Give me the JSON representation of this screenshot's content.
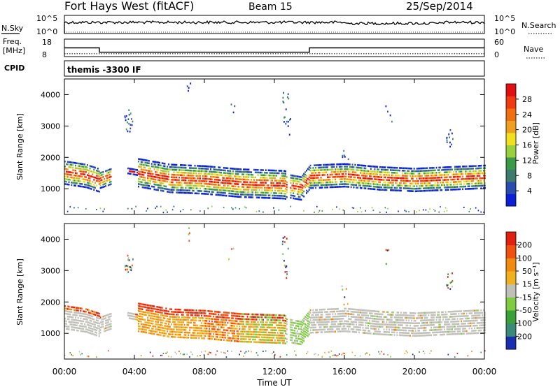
{
  "header": {
    "title": "Fort Hays West (fitACF)",
    "beam": "Beam 15",
    "date": "25/Sep/2014"
  },
  "top_panels": {
    "nsky_label": "N.Sky",
    "nsky_ticks": [
      "10^5",
      "10^0"
    ],
    "nsearch_label": "N.Search",
    "nsearch_ticks": [
      "10^5",
      "10^0"
    ],
    "freq_label": "Freq.",
    "freq_unit": "[MHz]",
    "freq_ticks": [
      "18",
      "8"
    ],
    "nave_label": "Nave",
    "nave_ticks": [
      "60",
      "0"
    ],
    "cpid_label": "CPID",
    "cpid_value": "themis -3300 IF"
  },
  "x_axis": {
    "label": "Time UT",
    "ticks": [
      "00:00",
      "04:00",
      "08:00",
      "12:00",
      "16:00",
      "20:00",
      "00:00"
    ]
  },
  "power_panel": {
    "ylabel": "Slant Range [km]",
    "yticks": [
      "4000",
      "3000",
      "2000",
      "1000"
    ],
    "colorbar_label": "Power [dB]",
    "colorbar_ticks": [
      "28",
      "24",
      "20",
      "16",
      "12",
      "8",
      "4"
    ],
    "colors": [
      "#0a1fd6",
      "#2a4cb0",
      "#3f7a6e",
      "#3a9a48",
      "#9ad040",
      "#f0e020",
      "#f0a020",
      "#f07010",
      "#f03a10",
      "#e01010"
    ]
  },
  "velocity_panel": {
    "ylabel": "Slant Range [km]",
    "yticks": [
      "4000",
      "3000",
      "2000",
      "1000"
    ],
    "colorbar_label": "Velocity [m s⁻¹]",
    "colorbar_ticks": [
      "200",
      "100",
      "50",
      "15",
      "-15",
      "-50",
      "-100",
      "-200"
    ],
    "colors": [
      "#1a2fb0",
      "#3a8a7a",
      "#3aa038",
      "#80cc40",
      "#c0c0b8",
      "#f0b020",
      "#f08a10",
      "#f05010",
      "#e02010"
    ]
  },
  "chart_data": {
    "type": "heatmap",
    "title": "Fort Hays West (fitACF)",
    "xlabel": "Time UT",
    "ylabel": "Slant Range [km]",
    "xlim_hours": [
      0,
      24
    ],
    "ylim_km": [
      180,
      4500
    ],
    "freq_steps_mhz": [
      {
        "start_h": 0,
        "end_h": 2,
        "freq": 13
      },
      {
        "start_h": 2,
        "end_h": 14,
        "freq": 10.5
      },
      {
        "start_h": 14,
        "end_h": 24,
        "freq": 13
      }
    ],
    "nave_level": 10,
    "power_band": [
      {
        "t": 0,
        "r": 1500
      },
      {
        "t": 1.2,
        "r": 1400
      },
      {
        "t": 2,
        "r": 1250
      },
      {
        "t": 3.5,
        "r": 1550
      },
      {
        "t": 4.5,
        "r": 1450
      },
      {
        "t": 6,
        "r": 1300
      },
      {
        "t": 8,
        "r": 1250
      },
      {
        "t": 10,
        "r": 1150
      },
      {
        "t": 12.5,
        "r": 1100
      },
      {
        "t": 13.5,
        "r": 1000
      },
      {
        "t": 14,
        "r": 1350
      },
      {
        "t": 16,
        "r": 1400
      },
      {
        "t": 18,
        "r": 1300
      },
      {
        "t": 20,
        "r": 1250
      },
      {
        "t": 22,
        "r": 1300
      },
      {
        "t": 24,
        "r": 1350
      }
    ]
  }
}
